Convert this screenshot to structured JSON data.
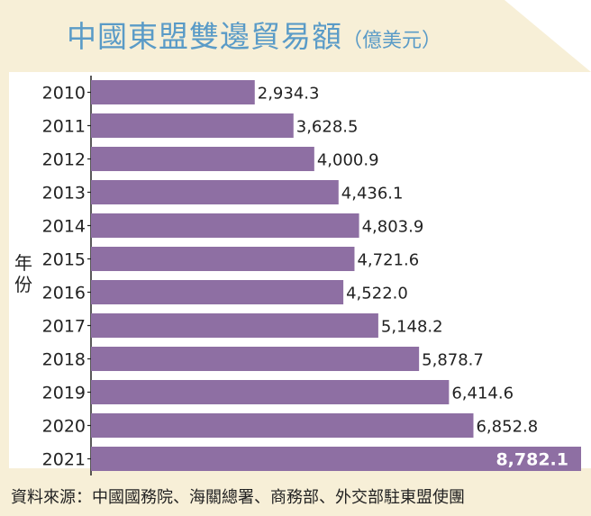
{
  "header": {
    "title": "中國東盟雙邊貿易額",
    "unit": "（億美元）"
  },
  "chart_data": {
    "type": "bar",
    "orientation": "horizontal",
    "title": "中國東盟雙邊貿易額（億美元）",
    "ylabel": "年份",
    "xlabel": "",
    "categories": [
      "2010",
      "2011",
      "2012",
      "2013",
      "2014",
      "2015",
      "2016",
      "2017",
      "2018",
      "2019",
      "2020",
      "2021"
    ],
    "values": [
      2934.3,
      3628.5,
      4000.9,
      4436.1,
      4803.9,
      4721.6,
      4522.0,
      5148.2,
      5878.7,
      6414.6,
      6852.8,
      8782.1
    ],
    "value_labels": [
      "2,934.3",
      "3,628.5",
      "4,000.9",
      "4,436.1",
      "4,803.9",
      "4,721.6",
      "4,522.0",
      "5,148.2",
      "5,878.7",
      "6,414.6",
      "6,852.8",
      "8,782.1"
    ],
    "xlim": [
      0,
      8782.1
    ],
    "grid": false,
    "colors": {
      "bar": "#8e6fa3",
      "highlight_label": "#ffffff",
      "axis": "#222222"
    }
  },
  "footer": {
    "source": "資料來源：中國國務院、海關總署、商務部、外交部駐東盟使團"
  },
  "colors": {
    "background": "#f7efd7",
    "title": "#5a9bc7",
    "plot_bg": "#ffffff"
  }
}
